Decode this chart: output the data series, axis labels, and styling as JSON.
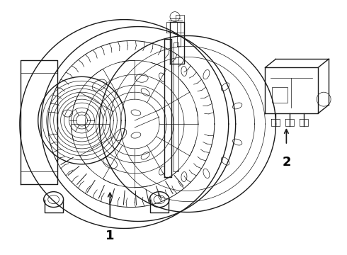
{
  "background_color": "#ffffff",
  "line_color": "#1a1a1a",
  "label_color": "#000000",
  "fig_width": 4.9,
  "fig_height": 3.6,
  "dpi": 100,
  "part1_label": "1",
  "part2_label": "2"
}
